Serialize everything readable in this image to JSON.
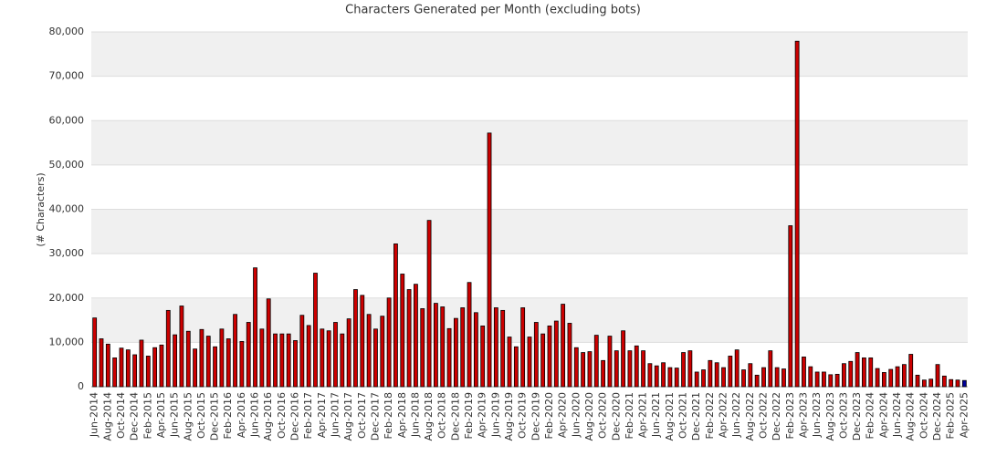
{
  "chart_data": {
    "type": "bar",
    "title": "Characters Generated per Month (excluding bots)",
    "y_label": "(# Characters)",
    "categories": [
      "Jun-2014",
      null,
      "Aug-2014",
      null,
      "Oct-2014",
      null,
      "Dec-2014",
      null,
      "Feb-2015",
      null,
      "Apr-2015",
      null,
      "Jun-2015",
      null,
      "Aug-2015",
      null,
      "Oct-2015",
      null,
      "Dec-2015",
      null,
      "Feb-2016",
      null,
      "Apr-2016",
      null,
      "Jun-2016",
      null,
      "Aug-2016",
      null,
      "Oct-2016",
      null,
      "Dec-2016",
      null,
      "Feb-2017",
      null,
      "Apr-2017",
      null,
      "Jun-2017",
      null,
      "Aug-2017",
      null,
      "Oct-2017",
      null,
      "Dec-2017",
      null,
      "Feb-2018",
      null,
      "Apr-2018",
      null,
      "Jun-2018",
      null,
      "Aug-2018",
      null,
      "Oct-2018",
      null,
      "Dec-2018",
      null,
      "Feb-2019",
      null,
      "Apr-2019",
      null,
      "Jun-2019",
      null,
      "Aug-2019",
      null,
      "Oct-2019",
      null,
      "Dec-2019",
      null,
      "Feb-2020",
      null,
      "Apr-2020",
      null,
      "Jun-2020",
      null,
      "Aug-2020",
      null,
      "Oct-2020",
      null,
      "Dec-2020",
      null,
      "Feb-2021",
      null,
      "Apr-2021",
      null,
      "Jun-2021",
      null,
      "Aug-2021",
      null,
      "Oct-2021",
      null,
      "Dec-2021",
      null,
      "Feb-2022",
      null,
      "Apr-2022",
      null,
      "Jun-2022",
      null,
      "Aug-2022",
      null,
      "Oct-2022",
      null,
      "Dec-2022",
      null,
      "Feb-2023",
      null,
      "Apr-2023",
      null,
      "Jun-2023",
      null,
      "Aug-2023",
      null,
      "Oct-2023",
      null,
      "Dec-2023",
      null,
      "Feb-2024",
      null,
      "Apr-2024",
      null,
      "Jun-2024",
      null,
      "Aug-2024",
      null,
      "Oct-2024",
      null,
      "Dec-2024",
      null,
      "Feb-2025",
      null,
      "Apr-2025"
    ],
    "values": [
      15500,
      10800,
      9600,
      6500,
      8700,
      8300,
      7200,
      10500,
      6900,
      8800,
      9400,
      17200,
      11700,
      18200,
      12500,
      8500,
      12900,
      11400,
      9000,
      13000,
      10800,
      16300,
      10200,
      14500,
      26800,
      13000,
      19800,
      11900,
      11900,
      11900,
      10400,
      16100,
      13800,
      25600,
      13000,
      12600,
      14500,
      11900,
      15300,
      21900,
      20600,
      16300,
      13000,
      15900,
      20000,
      32200,
      25400,
      21900,
      23100,
      17600,
      37500,
      18800,
      18000,
      13100,
      15400,
      17800,
      23500,
      16700,
      13700,
      57200,
      17800,
      17200,
      11200,
      9000,
      17800,
      11200,
      14500,
      11900,
      13700,
      14800,
      18600,
      14300,
      8800,
      7700,
      7900,
      11600,
      5900,
      11400,
      8100,
      12600,
      8100,
      9200,
      8100,
      5200,
      4700,
      5400,
      4300,
      4200,
      7700,
      8100,
      3300,
      3800,
      5900,
      5400,
      4300,
      6900,
      8300,
      3800,
      5200,
      2600,
      4300,
      8100,
      4300,
      4000,
      36300,
      77900,
      6700,
      4500,
      3300,
      3300,
      2700,
      2800,
      5200,
      5700,
      7700,
      6500,
      6500,
      4100,
      3200,
      3900,
      4500,
      5000,
      7300,
      2600,
      1500,
      1700,
      5000,
      2400,
      1600,
      1500,
      1400
    ],
    "color": "#cc0000",
    "last_color": "#000099",
    "ylim": [
      0,
      80000
    ],
    "yticks": [
      0,
      {
        "value": 10000,
        "label": "10,000"
      },
      {
        "value": 20000,
        "label": "20,000"
      },
      {
        "value": 30000,
        "label": "30,000"
      },
      {
        "value": 40000,
        "label": "40,000"
      },
      {
        "value": 50000,
        "label": "50,000"
      },
      {
        "value": 60000,
        "label": "60,000"
      },
      {
        "value": 70000,
        "label": "70,000"
      },
      {
        "value": 80000,
        "label": "80,000"
      }
    ],
    "grid": true
  }
}
